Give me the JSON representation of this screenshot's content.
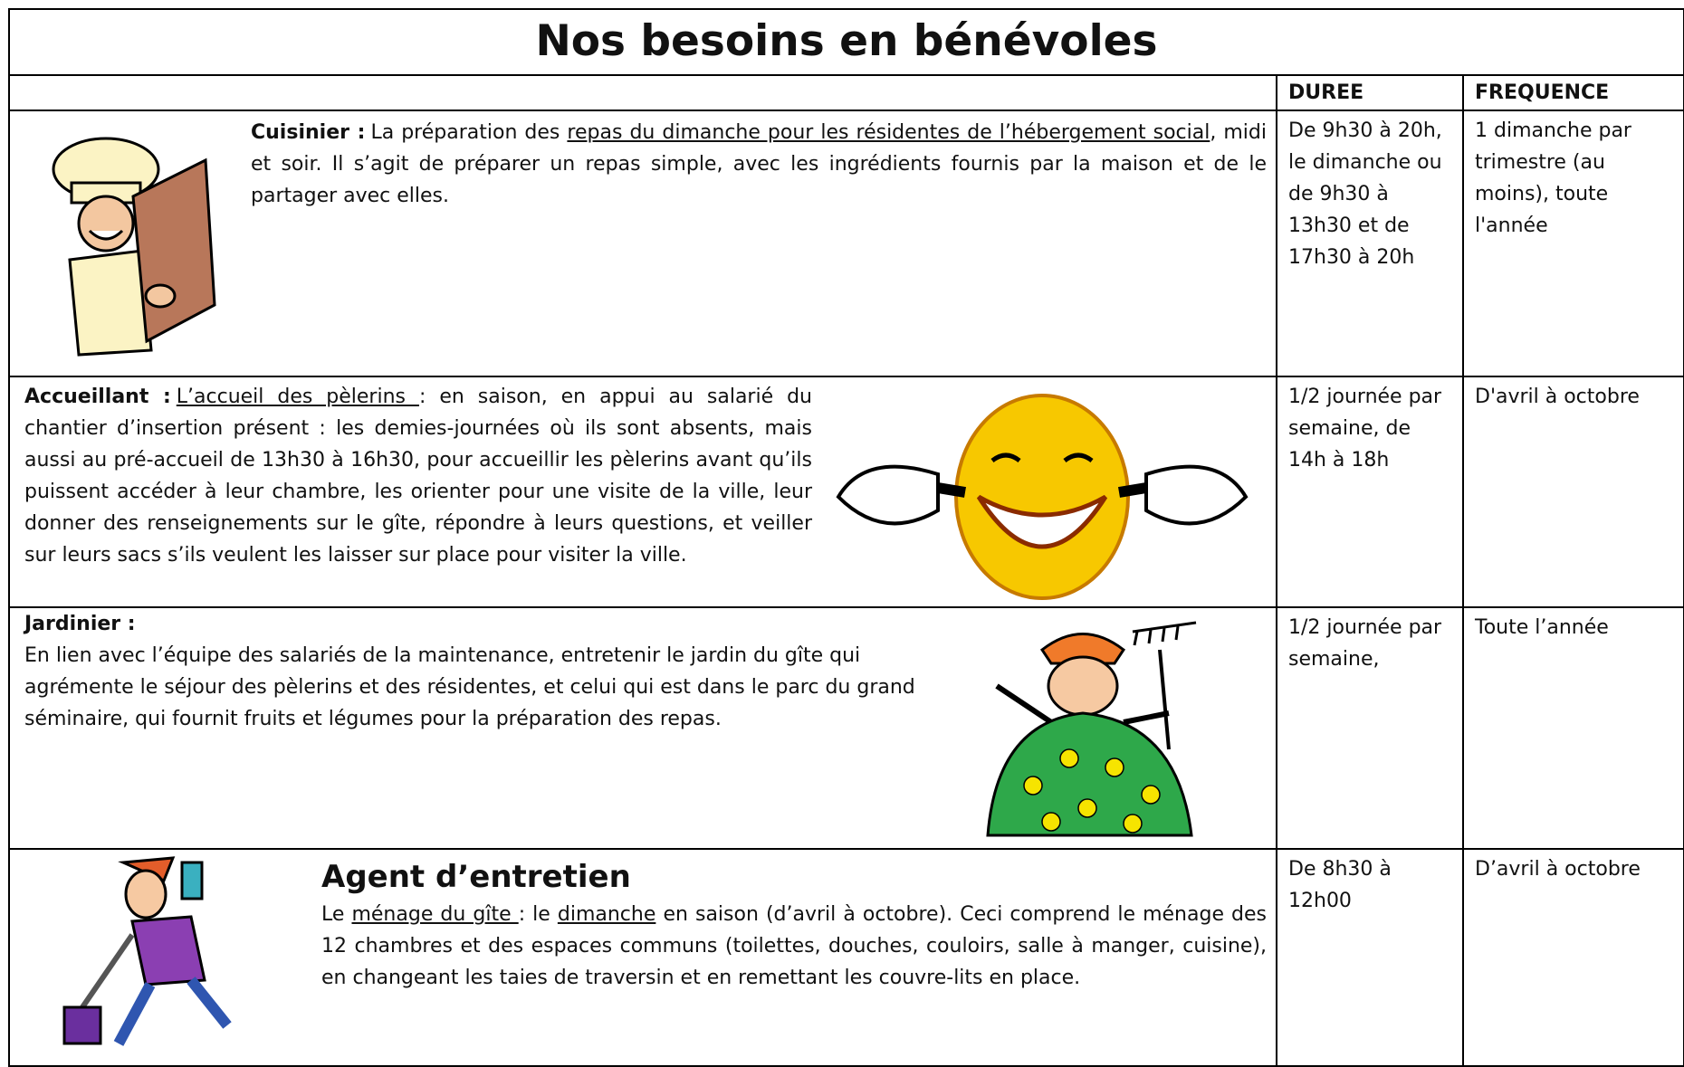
{
  "title": "Nos besoins en bénévoles",
  "header": {
    "duree": "DUREE",
    "frequence": "FREQUENCE"
  },
  "rows": [
    {
      "label": "Cuisinier :",
      "text": [
        "La préparation des ",
        "repas du dimanche pour les résidentes de l’hébergement social",
        ", midi et soir. Il s’agit de préparer un repas simple, avec les ingrédients fournis par la maison et de le partager avec elles."
      ],
      "duree": "De 9h30 à 20h, le dimanche ou de 9h30 à 13h30 et de 17h30 à 20h",
      "frequence": "1 dimanche par trimestre (au moins), toute l'année"
    },
    {
      "label": "Accueillant :",
      "text": [
        "L’accueil des pèlerins ",
        ": en saison, en appui au salarié du chantier d’insertion présent : les demies-journées où ils sont absents, mais aussi au pré-accueil de 13h30 à 16h30, pour accueillir les pèlerins avant qu’ils puissent accéder à leur chambre, les orienter pour une visite de la ville, leur donner des renseignements sur le gîte, répondre à leurs questions, et veiller sur leurs sacs s’ils veulent les laisser sur place pour visiter la ville."
      ],
      "duree": "1/2 journée par semaine, de 14h à 18h",
      "frequence": "D'avril à octobre"
    },
    {
      "label": "Jardinier :",
      "text": [
        "En lien avec l’équipe des salariés de la maintenance, entretenir le jardin du gîte qui agrémente le séjour des pèlerins et des résidentes, et celui qui est dans le parc du grand séminaire, qui fournit fruits et légumes pour la préparation des repas."
      ],
      "duree": "1/2 journée par semaine,",
      "frequence": "Toute l’année"
    },
    {
      "label": "Agent d’entretien",
      "text": [
        "Le ",
        "ménage du gîte ",
        ": le ",
        "dimanche",
        " en saison (d’avril à octobre). Ceci comprend le ménage des 12 chambres et des espaces communs (toilettes, douches, couloirs, salle à manger, cuisine), en changeant les taies de traversin et en remettant les couvre-lits en place."
      ],
      "duree": "De 8h30 à 12h00",
      "frequence": "D’avril à octobre"
    }
  ]
}
